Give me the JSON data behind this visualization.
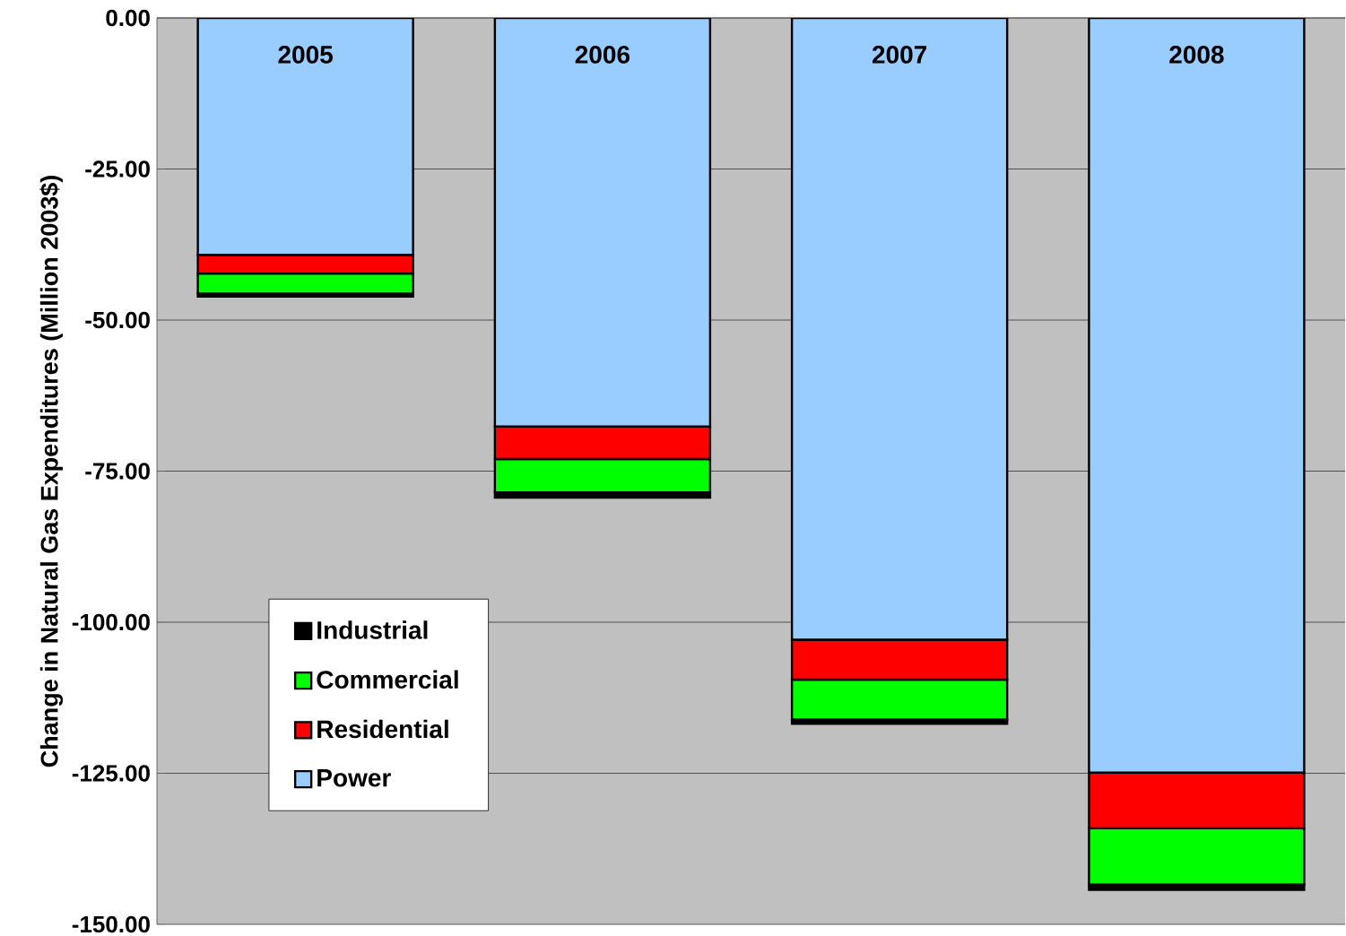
{
  "chart_data": {
    "type": "bar",
    "stacked": true,
    "ylabel": "Change in Natural Gas Expenditures (Million 2003$)",
    "categories": [
      "2005",
      "2006",
      "2007",
      "2008"
    ],
    "series": [
      {
        "name": "Power",
        "color": "#99ccff",
        "values": [
          -39.2,
          -67.6,
          -102.9,
          -124.9
        ]
      },
      {
        "name": "Residential",
        "color": "#ff0000",
        "values": [
          -3.1,
          -5.4,
          -6.6,
          -9.2
        ]
      },
      {
        "name": "Commercial",
        "color": "#00ff00",
        "values": [
          -3.3,
          -5.5,
          -6.6,
          -9.3
        ]
      },
      {
        "name": "Industrial",
        "color": "#000000",
        "values": [
          -0.5,
          -0.9,
          -0.7,
          -0.9
        ]
      }
    ],
    "ylim": [
      -150,
      0
    ],
    "yticks": [
      {
        "value": -150,
        "label": "-150.00"
      },
      {
        "value": -125,
        "label": "-125.00"
      },
      {
        "value": -100,
        "label": "-100.00"
      },
      {
        "value": -75,
        "label": "-75.00"
      },
      {
        "value": -50,
        "label": "-50.00"
      },
      {
        "value": -25,
        "label": "-25.00"
      },
      {
        "value": 0,
        "label": "0.00"
      }
    ],
    "grid": "y",
    "legend": "bottom left"
  }
}
